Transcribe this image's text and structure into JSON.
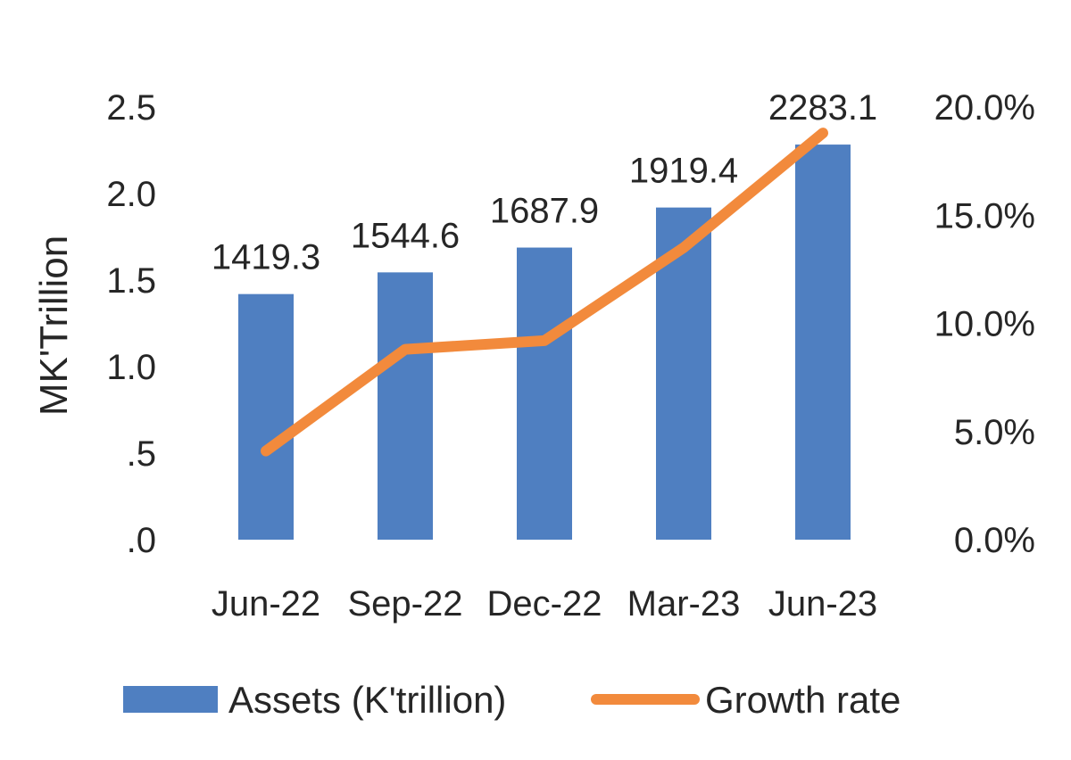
{
  "chart_data": {
    "type": "bar",
    "categories": [
      "Jun-22",
      "Sep-22",
      "Dec-22",
      "Mar-23",
      "Jun-23"
    ],
    "series": [
      {
        "name": "Assets (K'trillion)",
        "type": "bar",
        "axis": "left",
        "values": [
          1.4193,
          1.5446,
          1.6879,
          1.9194,
          2.2831
        ],
        "data_labels": [
          "1419.3",
          "1544.6",
          "1687.9",
          "1919.4",
          "2283.1"
        ],
        "color": "#4f7fc1"
      },
      {
        "name": "Growth rate",
        "type": "line",
        "axis": "right",
        "values": [
          0.041,
          0.088,
          0.092,
          0.135,
          0.188
        ],
        "color": "#f28a3c"
      }
    ],
    "ylabel": "MK'Trillion",
    "ylim": [
      0,
      2.5
    ],
    "y_ticks": [
      ".0",
      ".5",
      "1.0",
      "1.5",
      "2.0",
      "2.5"
    ],
    "y2lim": [
      0,
      0.2
    ],
    "y2_ticks": [
      "0.0%",
      "5.0%",
      "10.0%",
      "15.0%",
      "20.0%"
    ],
    "grid": false,
    "legend_position": "bottom"
  }
}
